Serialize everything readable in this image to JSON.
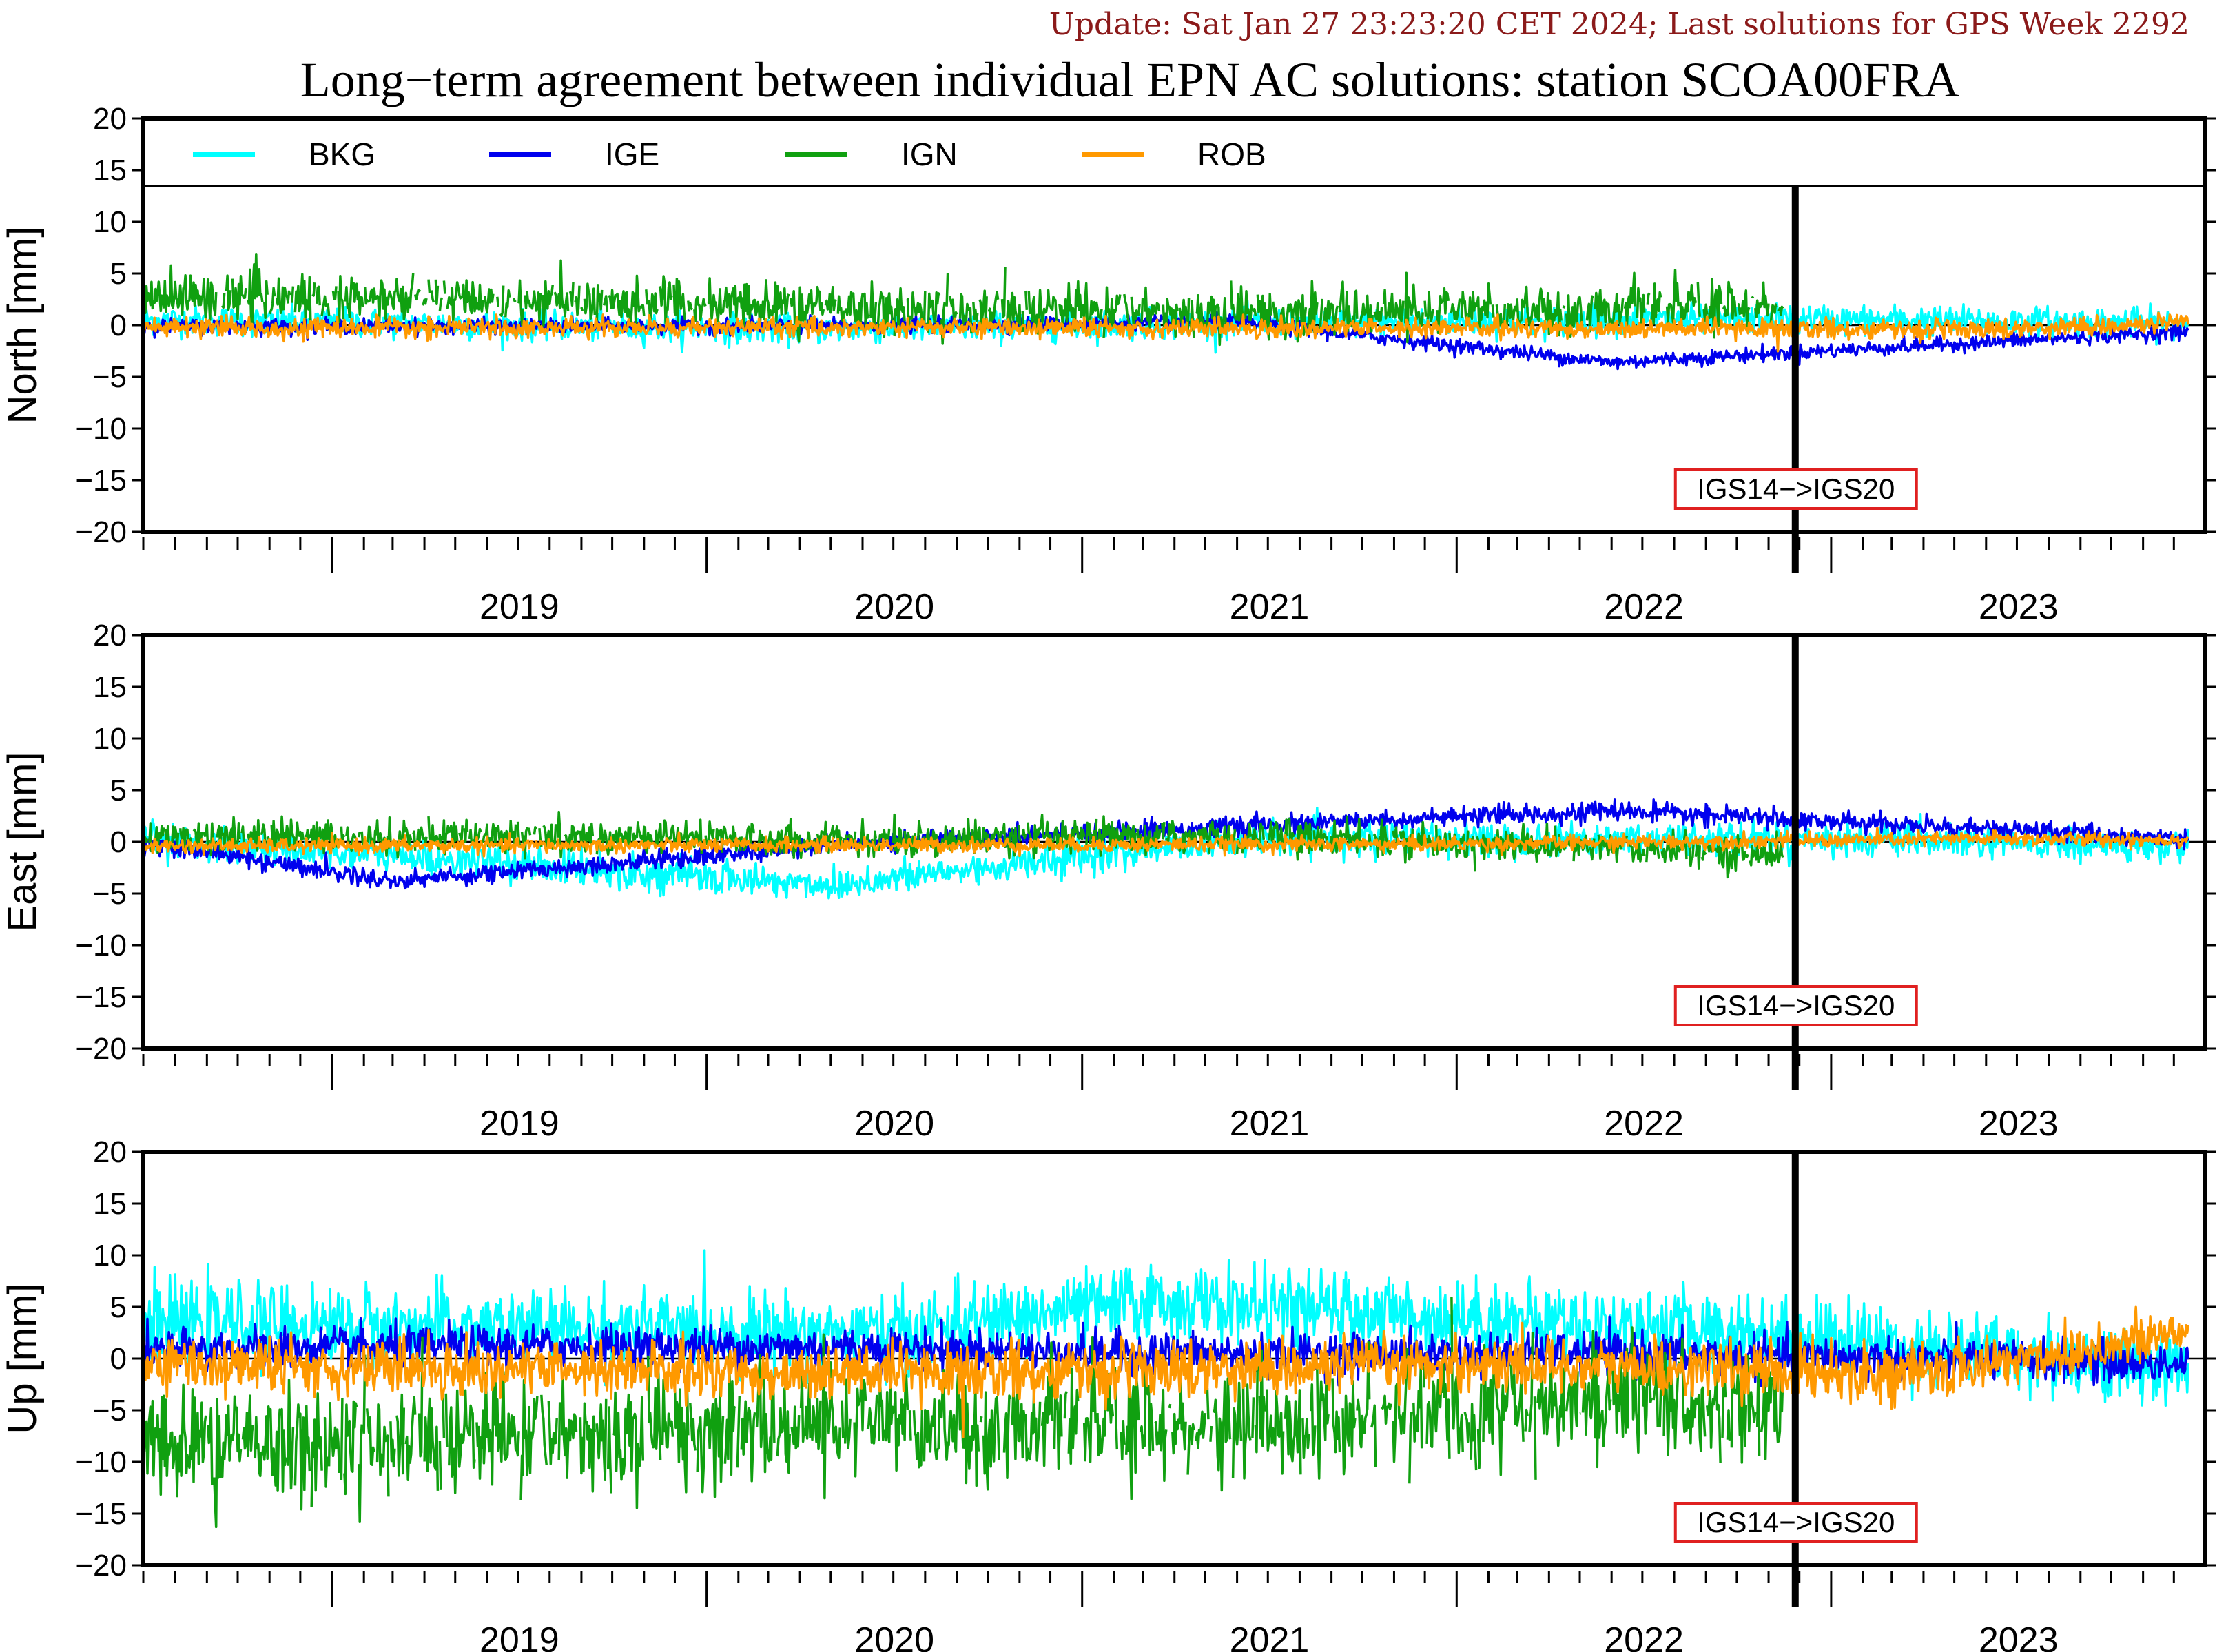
{
  "header": {
    "update": "Update: Sat Jan 27 23:23:20 CET 2024; Last solutions for GPS Week 2292",
    "title": "Long−term agreement between individual EPN AC solutions: station SCOA00FRA"
  },
  "colors": {
    "BKG": "#00ffff",
    "IGE": "#0000ee",
    "IGN": "#10a010",
    "ROB": "#ff9900",
    "annotation_border": "#e02020",
    "update_text": "#8b1a1a"
  },
  "legend": [
    {
      "name": "BKG",
      "color": "#00ffff"
    },
    {
      "name": "IGE",
      "color": "#0000ee"
    },
    {
      "name": "IGN",
      "color": "#10a010"
    },
    {
      "name": "ROB",
      "color": "#ff9900"
    }
  ],
  "chart_data": [
    {
      "type": "line",
      "component": "north",
      "ylabel": "North [mm]",
      "xlim": [
        "2018-07-01",
        "2023-12-31"
      ],
      "ylim": [
        -20,
        20
      ],
      "yticks": [
        "20",
        "15",
        "10",
        "5",
        "0",
        "−5",
        "−10",
        "−15",
        "−20"
      ],
      "year_labels": [
        "2019",
        "2020",
        "2021",
        "2022",
        "2023"
      ],
      "reference_line": "2022-11-27",
      "annotation": "IGS14−>IGS20",
      "series": [
        {
          "name": "BKG",
          "color": "#00ffff",
          "x": [
            "2018-07-01",
            "2020-04-01",
            "2021-06-01",
            "2022-11-01",
            "2023-12-15"
          ],
          "values": [
            0.5,
            -0.4,
            0.2,
            0.6,
            0.2
          ]
        },
        {
          "name": "IGE",
          "color": "#0000ee",
          "x": [
            "2018-07-01",
            "2020-04-01",
            "2021-06-01",
            "2022-06-01",
            "2023-12-15"
          ],
          "values": [
            -0.1,
            -0.1,
            0.3,
            -3.6,
            -0.6
          ]
        },
        {
          "name": "IGN",
          "color": "#10a010",
          "x": [
            "2018-07-01",
            "2019-07-01",
            "2020-07-01",
            "2021-07-01",
            "2022-11-15"
          ],
          "values": [
            2.8,
            2.4,
            1.6,
            1.2,
            2.0
          ]
        },
        {
          "name": "ROB",
          "color": "#ff9900",
          "x": [
            "2018-07-01",
            "2020-07-01",
            "2022-01-01",
            "2023-06-01",
            "2023-12-15"
          ],
          "values": [
            -0.3,
            -0.2,
            -0.3,
            -0.4,
            0.2
          ]
        }
      ]
    },
    {
      "type": "line",
      "component": "east",
      "ylabel": "East [mm]",
      "xlim": [
        "2018-07-01",
        "2023-12-31"
      ],
      "ylim": [
        -20,
        20
      ],
      "yticks": [
        "20",
        "15",
        "10",
        "5",
        "0",
        "−5",
        "−10",
        "−15",
        "−20"
      ],
      "year_labels": [
        "2019",
        "2020",
        "2021",
        "2022",
        "2023"
      ],
      "reference_line": "2022-11-27",
      "annotation": "IGS14−>IGS20",
      "series": [
        {
          "name": "BKG",
          "color": "#00ffff",
          "x": [
            "2018-07-01",
            "2020-05-01",
            "2021-06-01",
            "2022-11-01",
            "2023-12-15"
          ],
          "values": [
            0.2,
            -4.2,
            0.2,
            0.4,
            -0.6
          ]
        },
        {
          "name": "IGE",
          "color": "#0000ee",
          "x": [
            "2018-07-01",
            "2019-03-01",
            "2020-07-01",
            "2022-06-01",
            "2023-12-15"
          ],
          "values": [
            0.0,
            -3.8,
            0.1,
            3.0,
            0.3
          ]
        },
        {
          "name": "IGN",
          "color": "#10a010",
          "x": [
            "2018-07-01",
            "2019-07-01",
            "2020-07-01",
            "2021-07-01",
            "2022-11-15"
          ],
          "values": [
            0.4,
            0.6,
            0.2,
            0.5,
            -1.2
          ]
        },
        {
          "name": "ROB",
          "color": "#ff9900",
          "x": [
            "2018-07-01",
            "2020-07-01",
            "2022-01-01",
            "2023-06-01",
            "2023-12-15"
          ],
          "values": [
            -0.4,
            -0.3,
            -0.2,
            0.3,
            0.2
          ]
        }
      ]
    },
    {
      "type": "line",
      "component": "up",
      "ylabel": "Up [mm]",
      "xlim": [
        "2018-07-01",
        "2023-12-31"
      ],
      "ylim": [
        -20,
        20
      ],
      "yticks": [
        "20",
        "15",
        "10",
        "5",
        "0",
        "−5",
        "−10",
        "−15",
        "−20"
      ],
      "year_labels": [
        "2019",
        "2020",
        "2021",
        "2022",
        "2023"
      ],
      "reference_line": "2022-11-27",
      "annotation": "IGS14−>IGS20",
      "series": [
        {
          "name": "BKG",
          "color": "#00ffff",
          "x": [
            "2018-07-01",
            "2019-07-01",
            "2020-07-01",
            "2021-03-01",
            "2022-11-01",
            "2023-12-15"
          ],
          "values": [
            3.5,
            3.0,
            2.5,
            5.5,
            2.5,
            -1.0
          ]
        },
        {
          "name": "IGE",
          "color": "#0000ee",
          "x": [
            "2018-07-01",
            "2019-07-01",
            "2020-07-01",
            "2021-07-01",
            "2022-07-01",
            "2023-12-15"
          ],
          "values": [
            0.8,
            1.2,
            1.0,
            0.4,
            0.5,
            -0.5
          ]
        },
        {
          "name": "IGN",
          "color": "#10a010",
          "x": [
            "2018-07-01",
            "2019-07-01",
            "2020-07-01",
            "2021-07-01",
            "2022-06-01",
            "2022-11-15"
          ],
          "values": [
            -8.5,
            -7.5,
            -6.0,
            -6.5,
            -4.0,
            -5.0
          ]
        },
        {
          "name": "ROB",
          "color": "#ff9900",
          "x": [
            "2018-07-01",
            "2019-07-01",
            "2020-07-01",
            "2022-01-01",
            "2023-04-01",
            "2023-12-15"
          ],
          "values": [
            -0.5,
            -1.0,
            -1.5,
            -0.5,
            -1.5,
            2.5
          ]
        }
      ]
    }
  ]
}
